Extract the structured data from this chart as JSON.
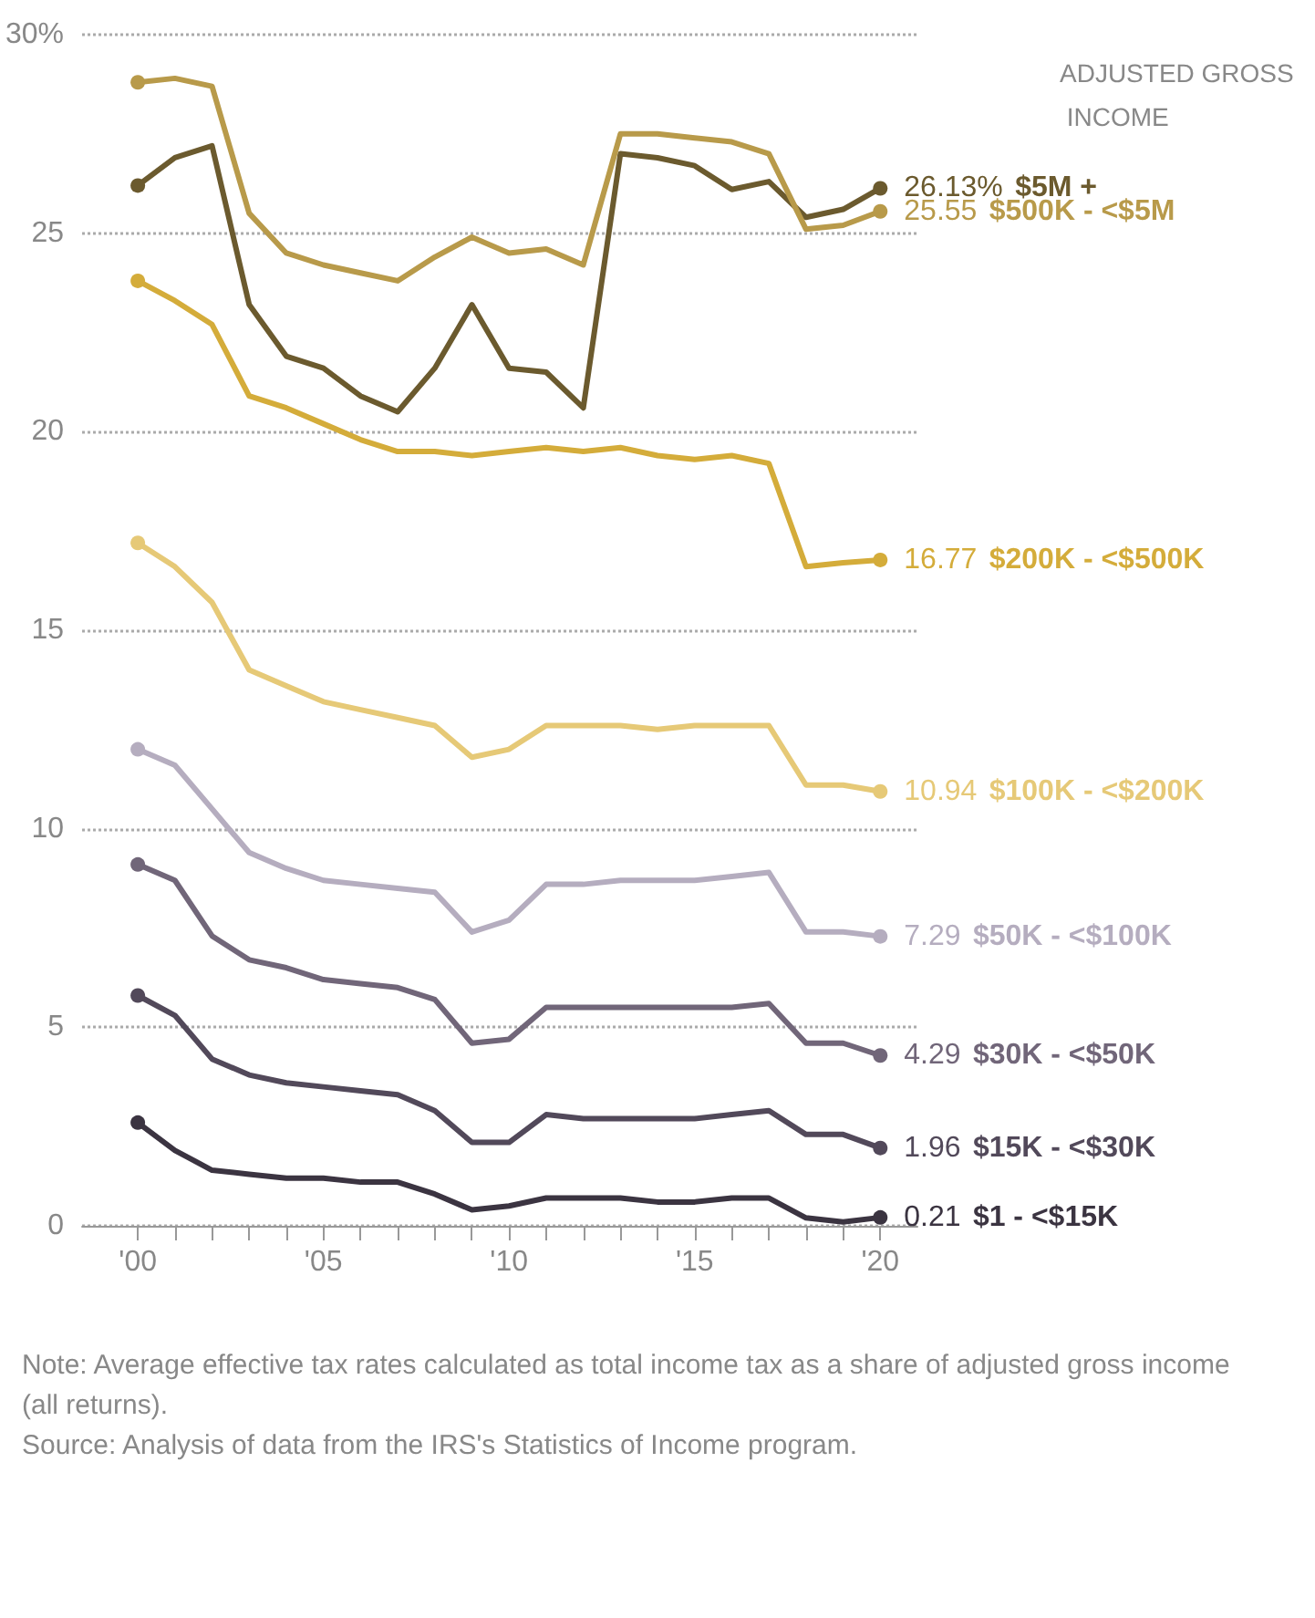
{
  "chart_data": {
    "type": "line",
    "legend_title": "ADJUSTED GROSS INCOME",
    "x": [
      2000,
      2001,
      2002,
      2003,
      2004,
      2005,
      2006,
      2007,
      2008,
      2009,
      2010,
      2011,
      2012,
      2013,
      2014,
      2015,
      2016,
      2017,
      2018,
      2019,
      2020
    ],
    "xlim": [
      1998.5,
      2021
    ],
    "xticks": [
      {
        "value": 2000,
        "label": "'00"
      },
      {
        "value": 2001,
        "label": null
      },
      {
        "value": 2002,
        "label": null
      },
      {
        "value": 2003,
        "label": null
      },
      {
        "value": 2004,
        "label": null
      },
      {
        "value": 2005,
        "label": "'05"
      },
      {
        "value": 2006,
        "label": null
      },
      {
        "value": 2007,
        "label": null
      },
      {
        "value": 2008,
        "label": null
      },
      {
        "value": 2009,
        "label": null
      },
      {
        "value": 2010,
        "label": "'10"
      },
      {
        "value": 2011,
        "label": null
      },
      {
        "value": 2012,
        "label": null
      },
      {
        "value": 2013,
        "label": null
      },
      {
        "value": 2014,
        "label": null
      },
      {
        "value": 2015,
        "label": "'15"
      },
      {
        "value": 2016,
        "label": null
      },
      {
        "value": 2017,
        "label": null
      },
      {
        "value": 2018,
        "label": null
      },
      {
        "value": 2019,
        "label": null
      },
      {
        "value": 2020,
        "label": "'20"
      }
    ],
    "ylim": [
      0,
      30
    ],
    "yticks": [
      0,
      5,
      10,
      15,
      20,
      25,
      {
        "value": 30,
        "label": "30%"
      }
    ],
    "grid": "y",
    "legend": false,
    "line_style": "solid",
    "series": [
      {
        "name": "$5M +",
        "color": "#6b5a2e",
        "values": [
          26.2,
          26.9,
          27.2,
          23.2,
          21.9,
          21.6,
          20.9,
          20.5,
          21.6,
          23.2,
          21.6,
          21.5,
          20.6,
          27.0,
          26.9,
          26.7,
          26.1,
          26.3,
          25.4,
          25.6,
          26.13
        ],
        "value_labels": [
          null,
          null,
          null,
          null,
          null,
          null,
          null,
          null,
          null,
          null,
          null,
          null,
          null,
          null,
          null,
          null,
          null,
          null,
          null,
          null,
          "26.13%"
        ]
      },
      {
        "name": "$500K - <$5M",
        "color": "#b89a4a",
        "values": [
          28.8,
          28.9,
          28.7,
          25.5,
          24.5,
          24.2,
          24.0,
          23.8,
          24.4,
          24.9,
          24.5,
          24.6,
          24.2,
          27.5,
          27.5,
          27.4,
          27.3,
          27.0,
          25.1,
          25.2,
          25.55
        ],
        "value_labels": [
          null,
          null,
          null,
          null,
          null,
          null,
          null,
          null,
          null,
          null,
          null,
          null,
          null,
          null,
          null,
          null,
          null,
          null,
          null,
          null,
          "25.55"
        ]
      },
      {
        "name": "$200K - <$500K",
        "color": "#d4ac3a",
        "values": [
          23.8,
          23.3,
          22.7,
          20.9,
          20.6,
          20.2,
          19.8,
          19.5,
          19.5,
          19.4,
          19.5,
          19.6,
          19.5,
          19.6,
          19.4,
          19.3,
          19.4,
          19.2,
          16.6,
          16.7,
          16.77
        ],
        "value_labels": [
          null,
          null,
          null,
          null,
          null,
          null,
          null,
          null,
          null,
          null,
          null,
          null,
          null,
          null,
          null,
          null,
          null,
          null,
          null,
          null,
          "16.77"
        ]
      },
      {
        "name": "$100K - <$200K",
        "color": "#e6c977",
        "values": [
          17.2,
          16.6,
          15.7,
          14.0,
          13.6,
          13.2,
          13.0,
          12.8,
          12.6,
          11.8,
          12.0,
          12.6,
          12.6,
          12.6,
          12.5,
          12.6,
          12.6,
          12.6,
          11.1,
          11.1,
          10.94
        ],
        "value_labels": [
          null,
          null,
          null,
          null,
          null,
          null,
          null,
          null,
          null,
          null,
          null,
          null,
          null,
          null,
          null,
          null,
          null,
          null,
          null,
          null,
          "10.94"
        ]
      },
      {
        "name": "$50K - <$100K",
        "color": "#b5adbf",
        "values": [
          12.0,
          11.6,
          10.5,
          9.4,
          9.0,
          8.7,
          8.6,
          8.5,
          8.4,
          7.4,
          7.7,
          8.6,
          8.6,
          8.7,
          8.7,
          8.7,
          8.8,
          8.9,
          7.4,
          7.4,
          7.29
        ],
        "value_labels": [
          null,
          null,
          null,
          null,
          null,
          null,
          null,
          null,
          null,
          null,
          null,
          null,
          null,
          null,
          null,
          null,
          null,
          null,
          null,
          null,
          "7.29"
        ]
      },
      {
        "name": "$30K - <$50K",
        "color": "#716679",
        "values": [
          9.1,
          8.7,
          7.3,
          6.7,
          6.5,
          6.2,
          6.1,
          6.0,
          5.7,
          4.6,
          4.7,
          5.5,
          5.5,
          5.5,
          5.5,
          5.5,
          5.5,
          5.6,
          4.6,
          4.6,
          4.29
        ],
        "value_labels": [
          null,
          null,
          null,
          null,
          null,
          null,
          null,
          null,
          null,
          null,
          null,
          null,
          null,
          null,
          null,
          null,
          null,
          null,
          null,
          null,
          "4.29"
        ]
      },
      {
        "name": "$15K - <$30K",
        "color": "#52495a",
        "values": [
          5.8,
          5.3,
          4.2,
          3.8,
          3.6,
          3.5,
          3.4,
          3.3,
          2.9,
          2.1,
          2.1,
          2.8,
          2.7,
          2.7,
          2.7,
          2.7,
          2.8,
          2.9,
          2.3,
          2.3,
          1.96
        ],
        "value_labels": [
          null,
          null,
          null,
          null,
          null,
          null,
          null,
          null,
          null,
          null,
          null,
          null,
          null,
          null,
          null,
          null,
          null,
          null,
          null,
          null,
          "1.96"
        ]
      },
      {
        "name": "$1 - <$15K",
        "color": "#3b3441",
        "values": [
          2.6,
          1.9,
          1.4,
          1.3,
          1.2,
          1.2,
          1.1,
          1.1,
          0.8,
          0.4,
          0.5,
          0.7,
          0.7,
          0.7,
          0.6,
          0.6,
          0.7,
          0.7,
          0.2,
          0.1,
          0.21
        ],
        "value_labels": [
          null,
          null,
          null,
          null,
          null,
          null,
          null,
          null,
          null,
          null,
          null,
          null,
          null,
          null,
          null,
          null,
          null,
          null,
          null,
          null,
          "0.21"
        ]
      }
    ],
    "annotations": [
      "Note: Average effective tax rates calculated as total income tax as a share of adjusted gross income (all returns).",
      "Source: Analysis of data from the IRS's Statistics of Income program."
    ]
  }
}
